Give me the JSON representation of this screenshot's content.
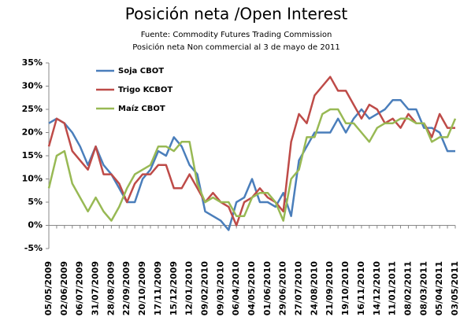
{
  "chart_data": {
    "type": "line",
    "title": "Posición neta /Open Interest",
    "subtitle": [
      "Fuente: Commodity  Futures Trading Commission",
      "Posición neta Non commercial al 3 de mayo de 2011"
    ],
    "categories": [
      "05/05/2009",
      null,
      "02/06/2009",
      null,
      "06/07/2009",
      null,
      "31/07/2009",
      null,
      "28/08/2009",
      null,
      "22/09/2009",
      null,
      "20/10/2009",
      null,
      "17/11/2009",
      null,
      "15/12/2009",
      null,
      "12/01/2010",
      null,
      "09/02/2010",
      null,
      "09/03/2010",
      null,
      "06/04/2010",
      null,
      "04/05/2010",
      null,
      "01/06/2010",
      null,
      "29/06/2010",
      null,
      "27/07/2010",
      null,
      "24/08/2010",
      null,
      "21/09/2010",
      null,
      "19/10/2010",
      null,
      "16/11/2010",
      null,
      "14/12/2010",
      null,
      "11/01/2011",
      null,
      "08/02/2011",
      null,
      "08/03/2011",
      null,
      "05/04/2011",
      null,
      "03/05/2011"
    ],
    "series": [
      {
        "name": "Soja CBOT",
        "color": "#4a7ebb",
        "values": [
          22,
          23,
          22,
          20,
          17,
          13,
          17,
          13,
          11,
          8,
          5,
          5,
          10,
          12,
          16,
          15,
          19,
          17,
          13,
          11,
          3,
          2,
          1,
          -1,
          5,
          6,
          10,
          5,
          5,
          4,
          7,
          2,
          14,
          17,
          20,
          20,
          20,
          23,
          20,
          23,
          25,
          23,
          24,
          25,
          27,
          27,
          25,
          25,
          21,
          21,
          20,
          16,
          16
        ]
      },
      {
        "name": "Trigo KCBOT",
        "color": "#be4b48",
        "values": [
          17,
          23,
          22,
          16,
          14,
          12,
          17,
          11,
          11,
          9,
          5,
          9,
          11,
          11,
          13,
          13,
          8,
          8,
          11,
          8,
          5,
          7,
          5,
          4,
          0,
          5,
          6,
          8,
          6,
          5,
          3,
          18,
          24,
          22,
          28,
          30,
          32,
          29,
          29,
          26,
          23,
          26,
          25,
          22,
          23,
          21,
          24,
          22,
          22,
          19,
          24,
          21,
          21
        ]
      },
      {
        "name": "Maíz CBOT",
        "color": "#98b954",
        "values": [
          8,
          15,
          16,
          9,
          6,
          3,
          6,
          3,
          1,
          4,
          8,
          11,
          12,
          13,
          17,
          17,
          16,
          18,
          18,
          9,
          5,
          6,
          5,
          5,
          2,
          2,
          6,
          7,
          7,
          5,
          1,
          10,
          12,
          19,
          19,
          24,
          25,
          25,
          22,
          22,
          20,
          18,
          21,
          22,
          22,
          23,
          23,
          22,
          22,
          18,
          19,
          19,
          23
        ]
      }
    ],
    "ylim": [
      -5,
      35
    ],
    "yticks": [
      {
        "value": -5,
        "label": "-5%"
      },
      {
        "value": 0,
        "label": "0%"
      },
      {
        "value": 5,
        "label": "5%"
      },
      {
        "value": 10,
        "label": "10%"
      },
      {
        "value": 15,
        "label": "15%"
      },
      {
        "value": 20,
        "label": "20%"
      },
      {
        "value": 25,
        "label": "25%"
      },
      {
        "value": 30,
        "label": "30%"
      },
      {
        "value": 35,
        "label": "35%"
      }
    ]
  }
}
